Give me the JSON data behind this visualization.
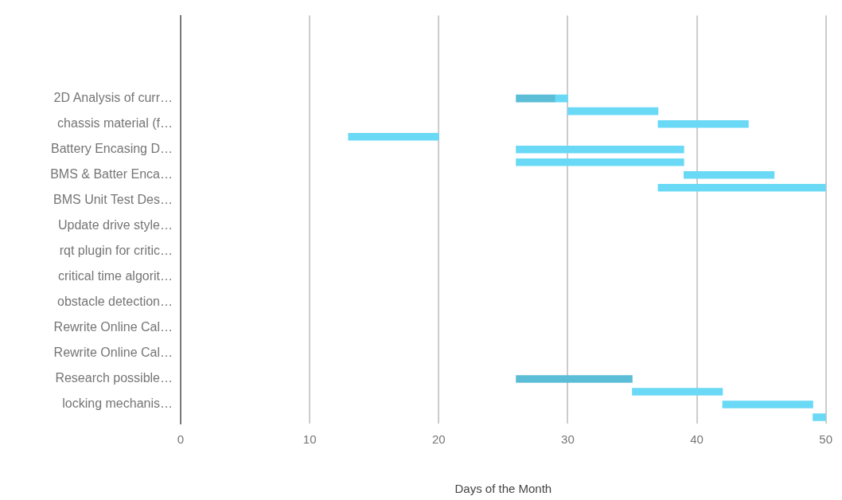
{
  "chart_data": {
    "type": "bar",
    "orientation": "horizontal",
    "xlabel": "Days of the Month",
    "categories": [
      null,
      null,
      null,
      null,
      null,
      null,
      "2D Analysis of curr…",
      null,
      "chassis material (f…",
      null,
      "Battery Encasing D…",
      null,
      "BMS & Batter Enca…",
      null,
      "BMS Unit Test Des…",
      null,
      "Update drive style…",
      null,
      "rqt plugin for critic…",
      null,
      "critical time algorit…",
      null,
      "obstacle detection…",
      null,
      "Rewrite Online Cal…",
      null,
      "Rewrite Online Cal…",
      null,
      "Research possible…",
      null,
      "locking mechanis…",
      null
    ],
    "series": [
      {
        "color": "#5bbdd6",
        "base": [
          null,
          null,
          null,
          null,
          null,
          null,
          26,
          null,
          null,
          null,
          null,
          null,
          null,
          null,
          null,
          null,
          null,
          null,
          null,
          null,
          null,
          null,
          null,
          null,
          null,
          null,
          null,
          null,
          26,
          null,
          null,
          null
        ],
        "values": [
          null,
          null,
          null,
          null,
          null,
          null,
          3,
          null,
          null,
          null,
          null,
          null,
          null,
          null,
          null,
          null,
          null,
          null,
          null,
          null,
          null,
          null,
          null,
          null,
          null,
          null,
          null,
          null,
          9,
          null,
          null,
          null
        ]
      },
      {
        "color": "#6ad9f6",
        "base": [
          null,
          null,
          null,
          null,
          null,
          null,
          29,
          30,
          37,
          13,
          26,
          26,
          39,
          37,
          null,
          null,
          null,
          null,
          null,
          null,
          null,
          null,
          null,
          null,
          null,
          null,
          null,
          null,
          null,
          35,
          42,
          49
        ],
        "values": [
          null,
          null,
          null,
          null,
          null,
          null,
          1,
          7,
          7,
          7,
          13,
          13,
          7,
          13,
          null,
          null,
          null,
          null,
          null,
          null,
          null,
          null,
          null,
          null,
          null,
          null,
          null,
          null,
          null,
          7,
          7,
          1
        ]
      }
    ],
    "xlim": [
      0,
      50
    ],
    "xticks": [
      0,
      10,
      20,
      30,
      40,
      50
    ],
    "grid": "x",
    "legend": false
  }
}
